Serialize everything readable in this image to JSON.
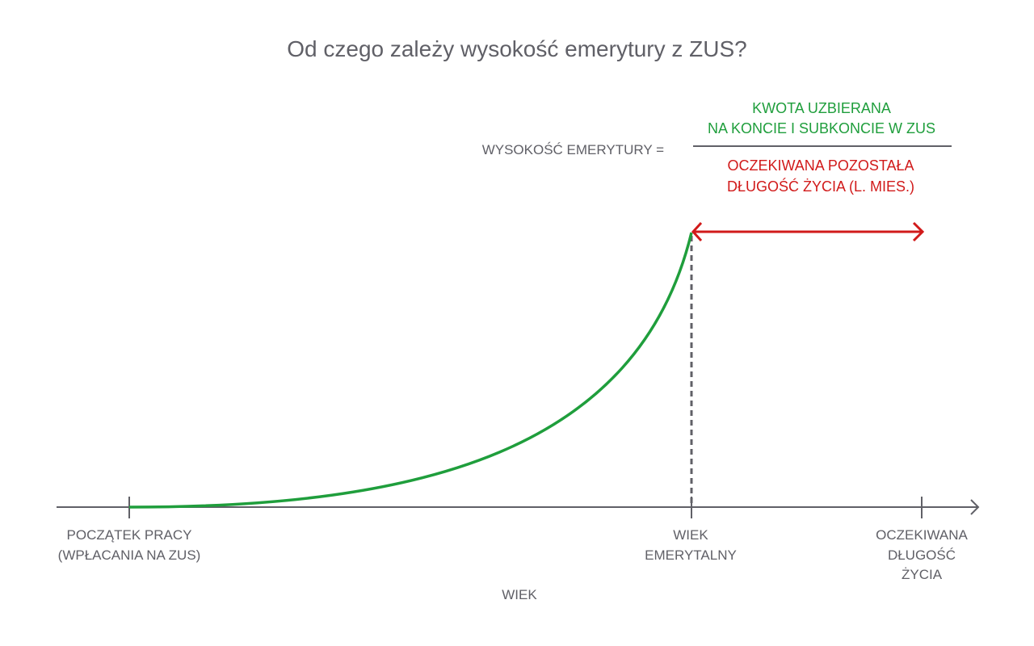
{
  "title": "Od czego zależy wysokość emerytury z ZUS?",
  "formula": {
    "lhs": "WYSOKOŚĆ EMERYTURY =",
    "numerator": [
      "KWOTA UZBIERANA",
      "NA KONCIE I SUBKONCIE W ZUS"
    ],
    "denominator": [
      "OCZEKIWANA POZOSTAŁA",
      "DŁUGOŚĆ ŻYCIA (L. MIES.)"
    ]
  },
  "axis": {
    "label": "WIEK",
    "ticks": [
      {
        "lines": [
          "POCZĄTEK PRACY",
          "(WPŁACANIA NA ZUS)"
        ]
      },
      {
        "lines": [
          "WIEK",
          "EMERYTALNY"
        ]
      },
      {
        "lines": [
          "OCZEKIWANA",
          "DŁUGOŚĆ",
          "ŻYCIA"
        ]
      }
    ]
  },
  "colors": {
    "text": "#606067",
    "accumulation": "#1f9e3c",
    "life_expectancy": "#d11a1a"
  }
}
